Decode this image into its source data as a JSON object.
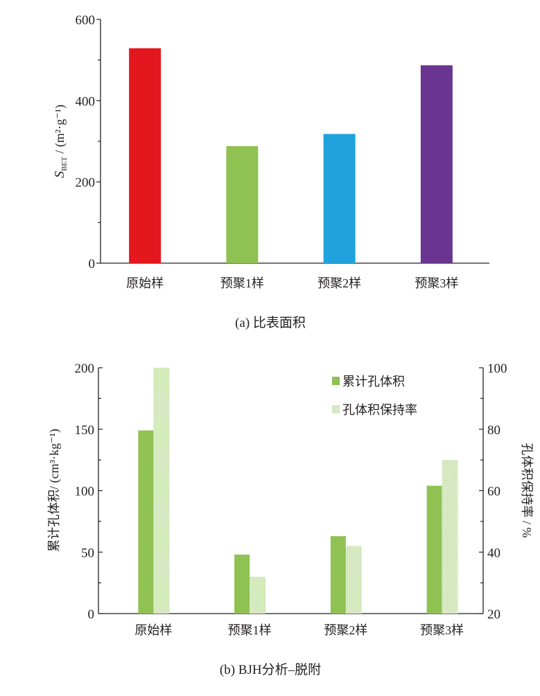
{
  "chart_data": [
    {
      "type": "bar",
      "title": "",
      "caption": "(a)  比表面积",
      "categories": [
        "原始样",
        "预聚1样",
        "预聚2样",
        "预聚3样"
      ],
      "values": [
        529,
        288,
        318,
        487
      ],
      "colors": [
        "#e4171e",
        "#8fc153",
        "#20a3dc",
        "#693590"
      ],
      "xlabel": "",
      "ylabel_main": "S",
      "ylabel_sub": "BET",
      "ylabel_unit": " / (m²·g⁻¹)",
      "ylim": [
        0,
        600
      ],
      "yticks": [
        "0",
        "200",
        "400",
        "600"
      ],
      "grid": false
    },
    {
      "type": "bar",
      "caption": "(b)  BJH分析–脱附",
      "categories": [
        "原始样",
        "预聚1样",
        "预聚2样",
        "预聚3样"
      ],
      "series": [
        {
          "name": "累计孔体积",
          "axis": "left",
          "values": [
            149,
            48,
            63,
            104
          ],
          "color": "#8fc153",
          "pattern": "solid"
        },
        {
          "name": "孔体积保持率",
          "axis": "right",
          "values": [
            100,
            32,
            42,
            70
          ],
          "color": "#c9e3b0",
          "pattern": "hatched"
        }
      ],
      "ylabel_left": "累计孔体积/ (cm³·kg⁻¹)",
      "ylabel_right": "孔体积保持率 / %",
      "ylim_left": [
        0,
        200
      ],
      "ylim_right": [
        20,
        100
      ],
      "yticks_left": [
        "0",
        "50",
        "100",
        "150",
        "200"
      ],
      "yticks_right": [
        "20",
        "40",
        "60",
        "80",
        "100"
      ],
      "legend_position": "top-right",
      "grid": false
    }
  ]
}
